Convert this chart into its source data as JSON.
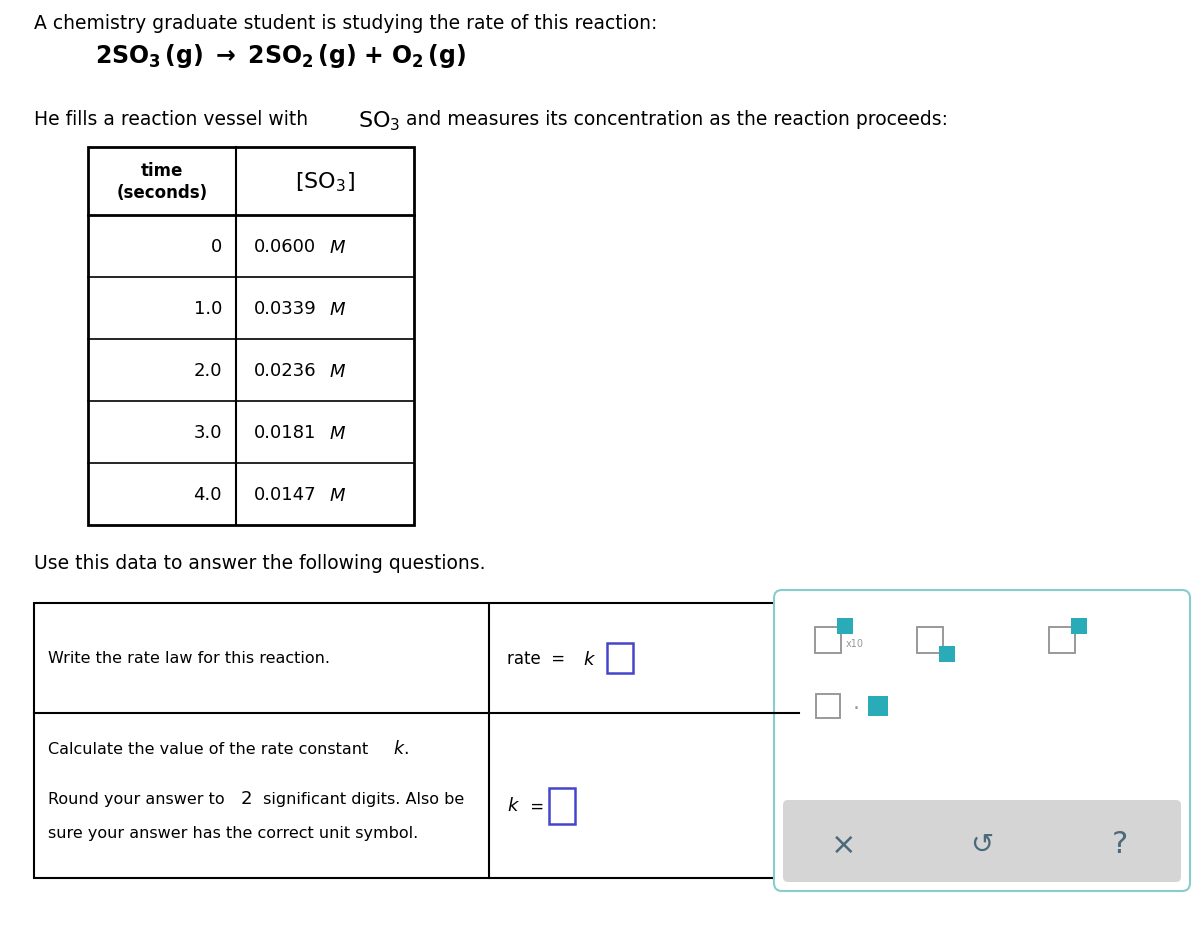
{
  "title_text": "A chemistry graduate student is studying the rate of this reaction:",
  "table_times": [
    "0",
    "1.0",
    "2.0",
    "3.0",
    "4.0"
  ],
  "table_conc_num": [
    "0.0600",
    "0.0339",
    "0.0236",
    "0.0181",
    "0.0147"
  ],
  "use_text": "Use this data to answer the following questions.",
  "q1_text": "Write the rate law for this reaction.",
  "q2_text1": "Calculate the value of the rate constant ",
  "q2_note1": "Round your answer to ",
  "q2_note2": " significant digits. Also be",
  "q2_note3": "sure your answer has the correct unit symbol.",
  "bg_color": "#ffffff",
  "text_color": "#000000",
  "teal_color": "#29ABB8",
  "blue_box_color": "#4444cc",
  "gray_sq_color": "#999999",
  "panel_border_color": "#88cccc",
  "strip_color": "#d5d5d5",
  "strip_text_color": "#4a6a7a"
}
